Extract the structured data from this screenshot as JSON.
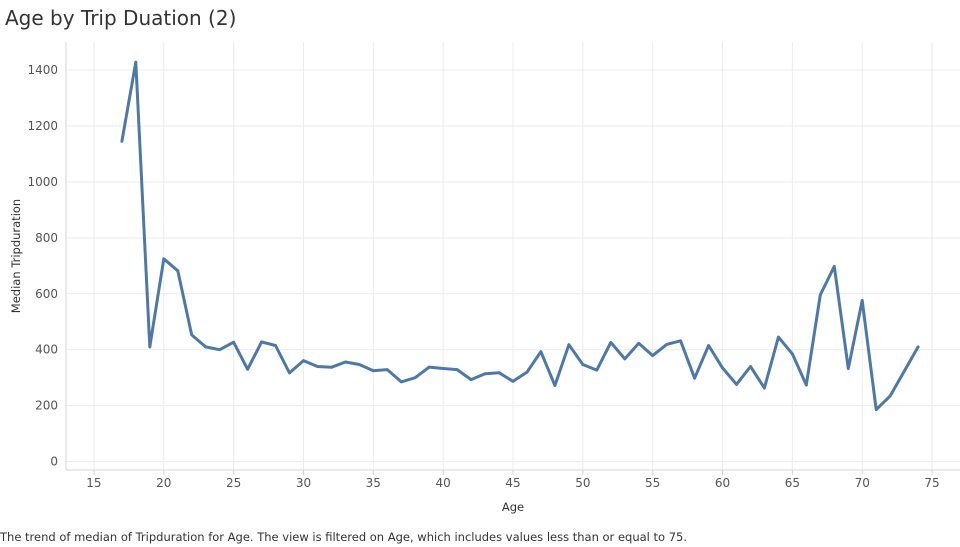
{
  "title": "Age by Trip Duation (2)",
  "footnote": "The trend of median of Tripduration for Age. The view is filtered on Age, which includes values less than or equal to 75.",
  "colors": {
    "line": "#4e79a7",
    "grid": "#ececec",
    "axis": "#d4d4d4"
  },
  "chart_data": {
    "type": "line",
    "title": "Age by Trip Duation (2)",
    "xlabel": "Age",
    "ylabel": "Median Tripduration",
    "xlim": [
      13,
      77
    ],
    "ylim": [
      -30,
      1500
    ],
    "x_ticks": [
      15,
      20,
      25,
      30,
      35,
      40,
      45,
      50,
      55,
      60,
      65,
      70,
      75
    ],
    "y_ticks": [
      0,
      200,
      400,
      600,
      800,
      1000,
      1200,
      1400
    ],
    "grid": true,
    "series": [
      {
        "x": [
          17,
          18,
          19,
          20,
          21,
          22,
          23,
          24,
          25,
          26,
          27,
          28,
          29,
          30,
          31,
          32,
          33,
          34,
          35,
          36,
          37,
          38,
          39,
          40,
          41,
          42,
          43,
          44,
          45,
          46,
          47,
          48,
          49,
          50,
          51,
          52,
          53,
          54,
          55,
          56,
          57,
          58,
          59,
          60,
          61,
          62,
          63,
          64,
          65,
          66,
          67,
          68,
          69,
          70,
          71,
          72,
          74
        ],
        "values": [
          1145,
          1428,
          410,
          725,
          682,
          453,
          410,
          400,
          427,
          330,
          428,
          415,
          317,
          361,
          340,
          337,
          356,
          347,
          325,
          329,
          285,
          300,
          338,
          333,
          329,
          293,
          314,
          318,
          287,
          320,
          393,
          272,
          418,
          347,
          327,
          426,
          367,
          423,
          379,
          419,
          432,
          298,
          415,
          335,
          276,
          340,
          263,
          445,
          385,
          274,
          596,
          698,
          333,
          576,
          186,
          235,
          410
        ]
      }
    ]
  }
}
